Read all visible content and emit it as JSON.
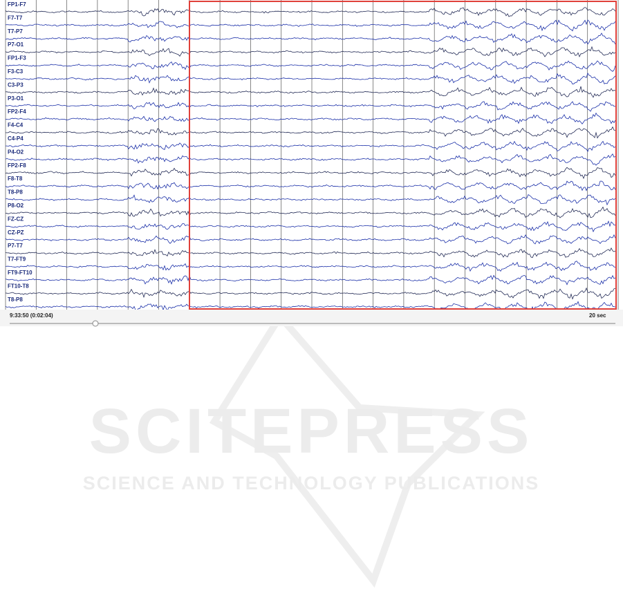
{
  "channels": [
    "FP1-F7",
    "F7-T7",
    "T7-P7",
    "P7-O1",
    "FP1-F3",
    "F3-C3",
    "C3-P3",
    "P3-O1",
    "FP2-F4",
    "F4-C4",
    "C4-P4",
    "P4-O2",
    "FP2-F8",
    "F8-T8",
    "T8-P8",
    "P8-O2",
    "FZ-CZ",
    "CZ-PZ",
    "P7-T7",
    "T7-FT9",
    "FT9-FT10",
    "FT10-T8",
    "T8-P8"
  ],
  "footer": {
    "time": "9:33:50 (0:02:04)",
    "scale": "20 sec"
  },
  "watermark": {
    "title": "SCITEPRESS",
    "subtitle": "SCIENCE AND TECHNOLOGY PUBLICATIONS"
  }
}
